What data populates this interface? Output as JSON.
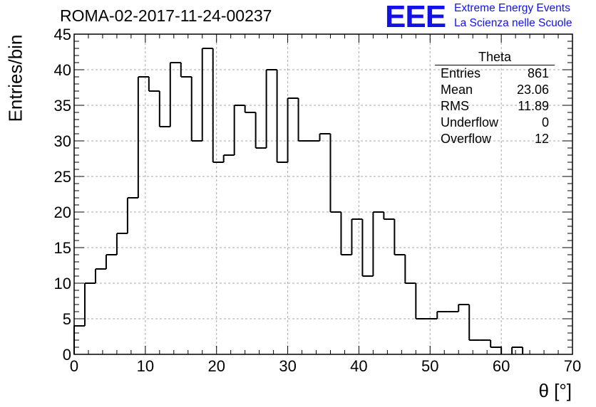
{
  "header": {
    "title": "ROMA-02-2017-11-24-00237",
    "logo_text": "EEE",
    "logo_line1": "Extreme Energy Events",
    "logo_line2": "La Scienza nelle Scuole",
    "logo_color": "#1212e8"
  },
  "stats": {
    "name": "Theta",
    "rows": [
      {
        "label": "Entries",
        "value": "861"
      },
      {
        "label": "Mean",
        "value": "23.06"
      },
      {
        "label": "RMS",
        "value": "11.89"
      },
      {
        "label": "Underflow",
        "value": "0"
      },
      {
        "label": "Overflow",
        "value": "12"
      }
    ]
  },
  "chart_data": {
    "type": "bar",
    "style": "step-histogram",
    "xlabel": "θ [°]",
    "ylabel": "Entries/bin",
    "xlim": [
      0,
      70
    ],
    "ylim": [
      0,
      45
    ],
    "grid": true,
    "bin_width": 1.5,
    "bin_edges_start": 0,
    "values": [
      4,
      10,
      12,
      14,
      17,
      22,
      39,
      37,
      32,
      41,
      39,
      30,
      43,
      27,
      28,
      35,
      34,
      29,
      40,
      27,
      36,
      30,
      30,
      31,
      20,
      14,
      19,
      11,
      20,
      19,
      14,
      10,
      5,
      5,
      6,
      6,
      7,
      2,
      2,
      1,
      0,
      1,
      0,
      0,
      0,
      0
    ],
    "x_ticks": [
      "0",
      "10",
      "20",
      "30",
      "40",
      "50",
      "60",
      "70"
    ],
    "y_ticks": [
      "0",
      "5",
      "10",
      "15",
      "20",
      "25",
      "30",
      "35",
      "40",
      "45"
    ],
    "x_tick_values": [
      0,
      10,
      20,
      30,
      40,
      50,
      60,
      70
    ],
    "y_tick_values": [
      0,
      5,
      10,
      15,
      20,
      25,
      30,
      35,
      40,
      45
    ]
  }
}
